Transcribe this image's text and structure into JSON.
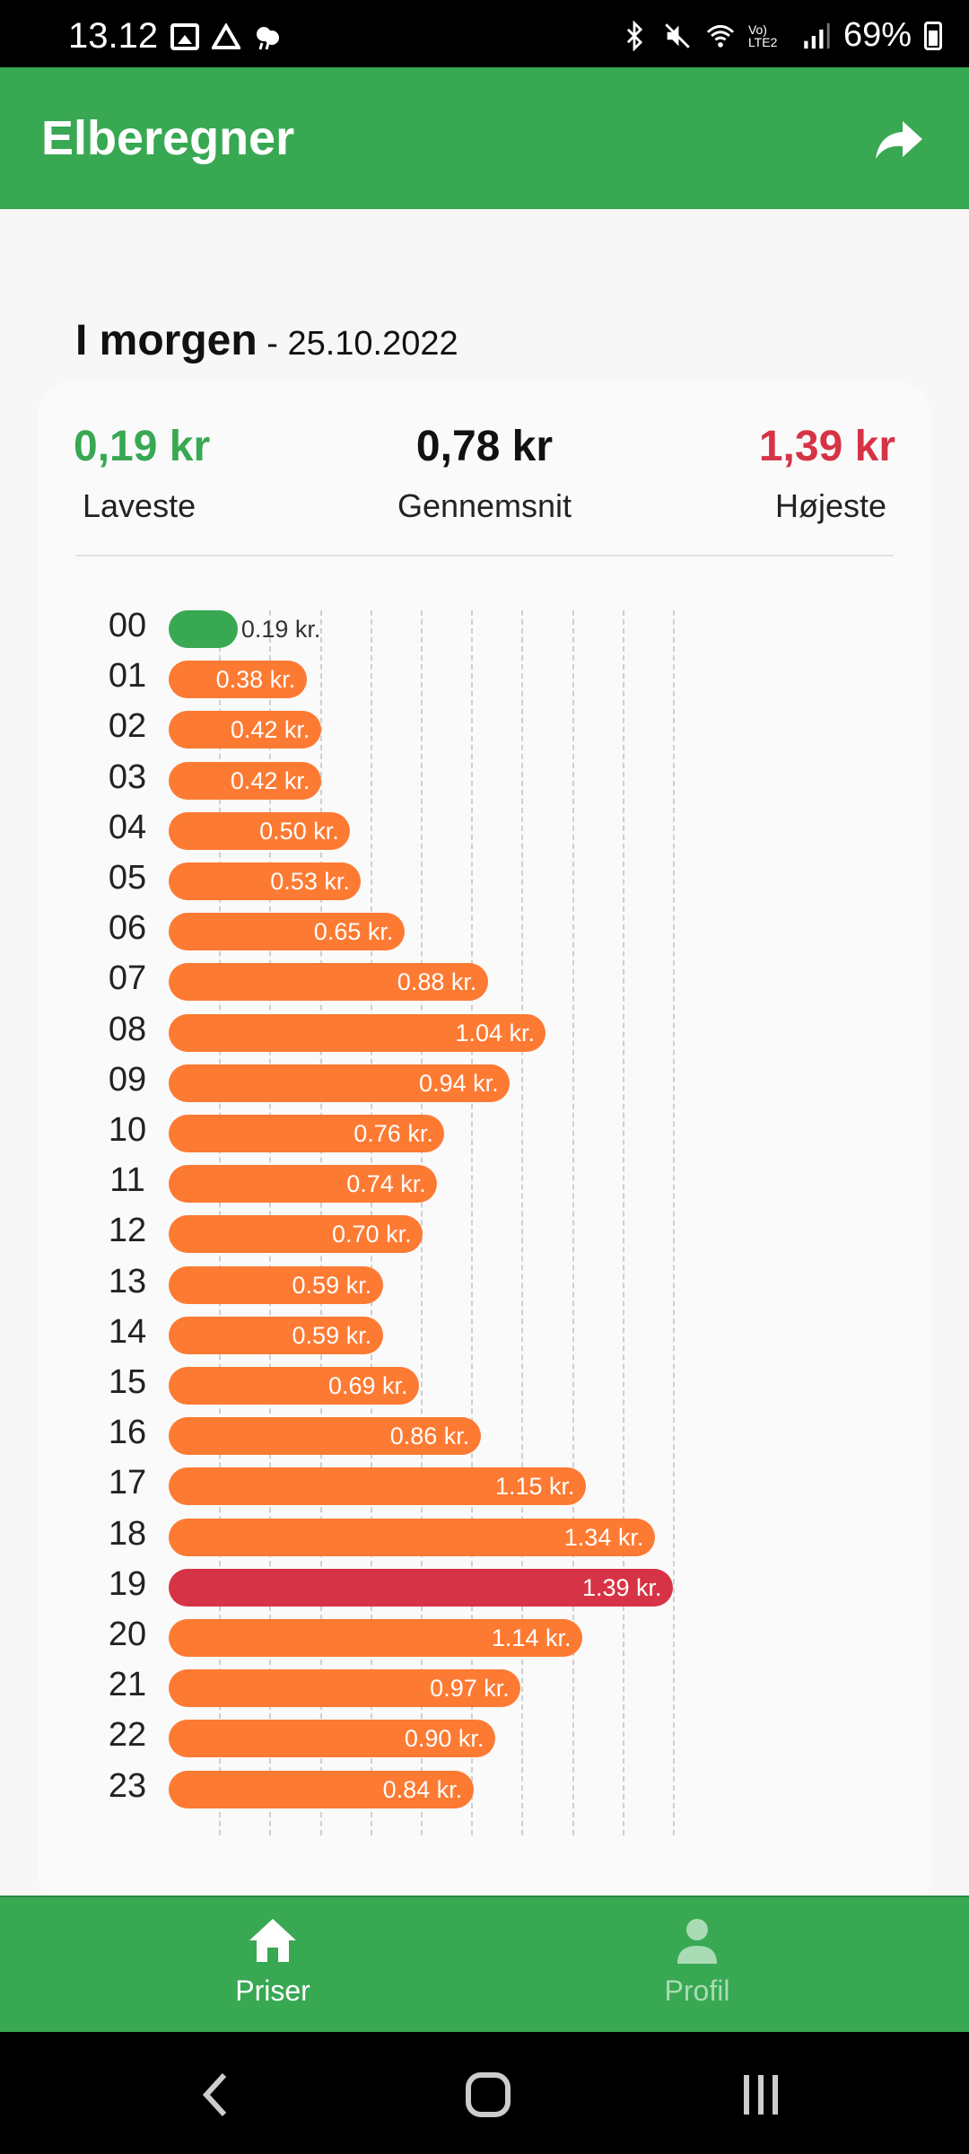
{
  "status_bar": {
    "time": "13.12",
    "network": "Vo) LTE2",
    "battery": "69%"
  },
  "app_bar": {
    "title": "Elberegner"
  },
  "date_heading": {
    "label": "I morgen",
    "separator": " - ",
    "date": "25.10.2022"
  },
  "summary": {
    "lowest_value": "0,19 kr",
    "lowest_label": "Laveste",
    "average_value": "0,78 kr",
    "average_label": "Gennemsnit",
    "highest_value": "1,39 kr",
    "highest_label": "Højeste"
  },
  "colors": {
    "accent_green": "#38a853",
    "bar_orange": "#fd7a33",
    "bar_low": "#38a853",
    "bar_high": "#d63446"
  },
  "chart_data": {
    "type": "bar",
    "orientation": "horizontal",
    "categories": [
      "00",
      "01",
      "02",
      "03",
      "04",
      "05",
      "06",
      "07",
      "08",
      "09",
      "10",
      "11",
      "12",
      "13",
      "14",
      "15",
      "16",
      "17",
      "18",
      "19",
      "20",
      "21",
      "22",
      "23"
    ],
    "values": [
      0.19,
      0.38,
      0.42,
      0.42,
      0.5,
      0.53,
      0.65,
      0.88,
      1.04,
      0.94,
      0.76,
      0.74,
      0.7,
      0.59,
      0.59,
      0.69,
      0.86,
      1.15,
      1.34,
      1.39,
      1.14,
      0.97,
      0.9,
      0.84
    ],
    "value_labels": [
      "0.19 kr.",
      "0.38 kr.",
      "0.42 kr.",
      "0.42 kr.",
      "0.50 kr.",
      "0.53 kr.",
      "0.65 kr.",
      "0.88 kr.",
      "1.04 kr.",
      "0.94 kr.",
      "0.76 kr.",
      "0.74 kr.",
      "0.70 kr.",
      "0.59 kr.",
      "0.59 kr.",
      "0.69 kr.",
      "0.86 kr.",
      "1.15 kr.",
      "1.34 kr.",
      "1.39 kr.",
      "1.14 kr.",
      "0.97 kr.",
      "0.90 kr.",
      "0.84 kr."
    ],
    "xlim": [
      0,
      1.39
    ],
    "grid": true,
    "lowest_index": 0,
    "highest_index": 19
  },
  "bottom_nav": {
    "items": [
      {
        "label": "Priser",
        "icon": "home-icon",
        "active": true
      },
      {
        "label": "Profil",
        "icon": "person-icon",
        "active": false
      }
    ]
  },
  "system_nav": {
    "icons": [
      "back-icon",
      "home-circle-icon",
      "recents-icon"
    ]
  }
}
